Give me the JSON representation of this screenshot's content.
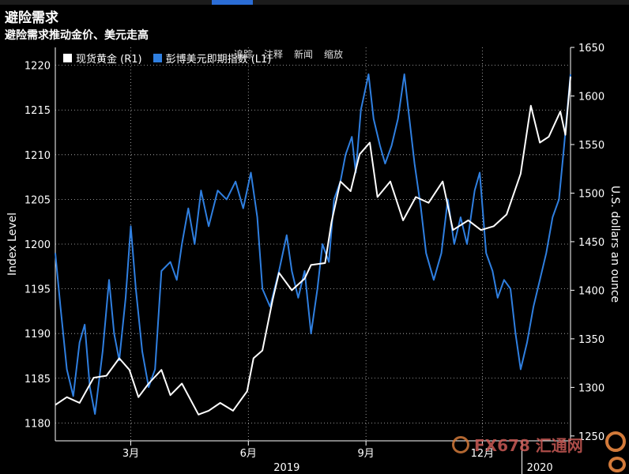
{
  "title": "避险需求",
  "subtitle": "避险需求推动金价、美元走高",
  "toolbar_overlay": [
    "追踪",
    "注释",
    "新闻",
    "缩放"
  ],
  "watermark": "FX678 汇通网",
  "colors": {
    "gold": "#ffffff",
    "dollar": "#2f7fe0",
    "background": "#000000",
    "grid": "#ffffff"
  },
  "chart_data": {
    "type": "line",
    "title": "避险需求推动金价、美元走高",
    "legend_position": "top-left",
    "grid": true,
    "x_ticks": [
      {
        "label": "3月",
        "date": "2019-03-01"
      },
      {
        "label": "6月",
        "date": "2019-06-01"
      },
      {
        "label": "9月",
        "date": "2019-09-01"
      },
      {
        "label": "12月",
        "date": "2019-12-01"
      }
    ],
    "year_labels": [
      {
        "label": "2019",
        "date": "2019-07-01"
      },
      {
        "label": "2020",
        "date": "2020-01-15"
      }
    ],
    "year_divider_date": "2020-01-01",
    "x_range": [
      "2019-01-01",
      "2020-02-08"
    ],
    "left_axis": {
      "label": "Index Level",
      "range": [
        1178,
        1222
      ],
      "ticks": [
        1180,
        1185,
        1190,
        1195,
        1200,
        1205,
        1210,
        1215,
        1220
      ]
    },
    "right_axis": {
      "label": "U.S. dollars an ounce",
      "range": [
        1245,
        1650
      ],
      "ticks": [
        1250,
        1300,
        1350,
        1400,
        1450,
        1500,
        1550,
        1600,
        1650
      ]
    },
    "series": [
      {
        "name": "现货黄金 (R1)",
        "axis": "right",
        "points": [
          [
            "2019-01-01",
            1282
          ],
          [
            "2019-01-10",
            1290
          ],
          [
            "2019-01-20",
            1284
          ],
          [
            "2019-01-31",
            1310
          ],
          [
            "2019-02-10",
            1312
          ],
          [
            "2019-02-20",
            1330
          ],
          [
            "2019-02-28",
            1318
          ],
          [
            "2019-03-07",
            1290
          ],
          [
            "2019-03-15",
            1304
          ],
          [
            "2019-03-25",
            1318
          ],
          [
            "2019-04-01",
            1292
          ],
          [
            "2019-04-10",
            1304
          ],
          [
            "2019-04-23",
            1272
          ],
          [
            "2019-05-01",
            1276
          ],
          [
            "2019-05-10",
            1284
          ],
          [
            "2019-05-20",
            1276
          ],
          [
            "2019-05-31",
            1296
          ],
          [
            "2019-06-05",
            1330
          ],
          [
            "2019-06-12",
            1338
          ],
          [
            "2019-06-20",
            1390
          ],
          [
            "2019-06-25",
            1418
          ],
          [
            "2019-07-05",
            1400
          ],
          [
            "2019-07-15",
            1412
          ],
          [
            "2019-07-20",
            1426
          ],
          [
            "2019-07-31",
            1428
          ],
          [
            "2019-08-05",
            1470
          ],
          [
            "2019-08-12",
            1512
          ],
          [
            "2019-08-20",
            1502
          ],
          [
            "2019-08-27",
            1540
          ],
          [
            "2019-09-04",
            1552
          ],
          [
            "2019-09-10",
            1496
          ],
          [
            "2019-09-20",
            1512
          ],
          [
            "2019-09-30",
            1472
          ],
          [
            "2019-10-10",
            1496
          ],
          [
            "2019-10-20",
            1490
          ],
          [
            "2019-10-31",
            1512
          ],
          [
            "2019-11-08",
            1462
          ],
          [
            "2019-11-20",
            1472
          ],
          [
            "2019-11-30",
            1462
          ],
          [
            "2019-12-10",
            1466
          ],
          [
            "2019-12-20",
            1478
          ],
          [
            "2019-12-31",
            1520
          ],
          [
            "2020-01-08",
            1590
          ],
          [
            "2020-01-15",
            1552
          ],
          [
            "2020-01-22",
            1558
          ],
          [
            "2020-01-31",
            1584
          ],
          [
            "2020-02-04",
            1560
          ],
          [
            "2020-02-08",
            1620
          ]
        ]
      },
      {
        "name": "彭博美元即期指数 (L1)",
        "axis": "left",
        "points": [
          [
            "2019-01-01",
            1199
          ],
          [
            "2019-01-05",
            1193
          ],
          [
            "2019-01-10",
            1186
          ],
          [
            "2019-01-15",
            1183
          ],
          [
            "2019-01-20",
            1189
          ],
          [
            "2019-01-24",
            1191
          ],
          [
            "2019-01-28",
            1184
          ],
          [
            "2019-02-01",
            1181
          ],
          [
            "2019-02-07",
            1188
          ],
          [
            "2019-02-12",
            1196
          ],
          [
            "2019-02-16",
            1190
          ],
          [
            "2019-02-20",
            1187
          ],
          [
            "2019-02-25",
            1194
          ],
          [
            "2019-03-01",
            1202
          ],
          [
            "2019-03-05",
            1195
          ],
          [
            "2019-03-10",
            1188
          ],
          [
            "2019-03-15",
            1184
          ],
          [
            "2019-03-20",
            1186
          ],
          [
            "2019-03-25",
            1197
          ],
          [
            "2019-04-01",
            1198
          ],
          [
            "2019-04-06",
            1196
          ],
          [
            "2019-04-10",
            1200
          ],
          [
            "2019-04-15",
            1204
          ],
          [
            "2019-04-20",
            1200
          ],
          [
            "2019-04-25",
            1206
          ],
          [
            "2019-05-01",
            1202
          ],
          [
            "2019-05-08",
            1206
          ],
          [
            "2019-05-15",
            1205
          ],
          [
            "2019-05-22",
            1207
          ],
          [
            "2019-05-28",
            1204
          ],
          [
            "2019-06-03",
            1208
          ],
          [
            "2019-06-08",
            1203
          ],
          [
            "2019-06-12",
            1195
          ],
          [
            "2019-06-18",
            1193
          ],
          [
            "2019-06-25",
            1197
          ],
          [
            "2019-07-01",
            1201
          ],
          [
            "2019-07-05",
            1197
          ],
          [
            "2019-07-10",
            1194
          ],
          [
            "2019-07-15",
            1197
          ],
          [
            "2019-07-20",
            1190
          ],
          [
            "2019-07-25",
            1195
          ],
          [
            "2019-07-29",
            1200
          ],
          [
            "2019-08-03",
            1198
          ],
          [
            "2019-08-07",
            1205
          ],
          [
            "2019-08-12",
            1207
          ],
          [
            "2019-08-16",
            1210
          ],
          [
            "2019-08-21",
            1212
          ],
          [
            "2019-08-24",
            1208
          ],
          [
            "2019-08-28",
            1215
          ],
          [
            "2019-09-03",
            1219
          ],
          [
            "2019-09-07",
            1214
          ],
          [
            "2019-09-12",
            1211
          ],
          [
            "2019-09-16",
            1209
          ],
          [
            "2019-09-21",
            1211
          ],
          [
            "2019-09-26",
            1214
          ],
          [
            "2019-10-01",
            1219
          ],
          [
            "2019-10-05",
            1214
          ],
          [
            "2019-10-09",
            1209
          ],
          [
            "2019-10-14",
            1204
          ],
          [
            "2019-10-18",
            1199
          ],
          [
            "2019-10-24",
            1196
          ],
          [
            "2019-10-30",
            1199
          ],
          [
            "2019-11-04",
            1205
          ],
          [
            "2019-11-09",
            1200
          ],
          [
            "2019-11-14",
            1203
          ],
          [
            "2019-11-19",
            1200
          ],
          [
            "2019-11-25",
            1206
          ],
          [
            "2019-11-29",
            1208
          ],
          [
            "2019-12-04",
            1199
          ],
          [
            "2019-12-09",
            1197
          ],
          [
            "2019-12-13",
            1194
          ],
          [
            "2019-12-18",
            1196
          ],
          [
            "2019-12-23",
            1195
          ],
          [
            "2019-12-27",
            1190
          ],
          [
            "2019-12-31",
            1186
          ],
          [
            "2020-01-05",
            1189
          ],
          [
            "2020-01-10",
            1193
          ],
          [
            "2020-01-15",
            1196
          ],
          [
            "2020-01-20",
            1199
          ],
          [
            "2020-01-25",
            1203
          ],
          [
            "2020-01-30",
            1205
          ],
          [
            "2020-02-03",
            1211
          ],
          [
            "2020-02-08",
            1219
          ]
        ]
      }
    ]
  }
}
